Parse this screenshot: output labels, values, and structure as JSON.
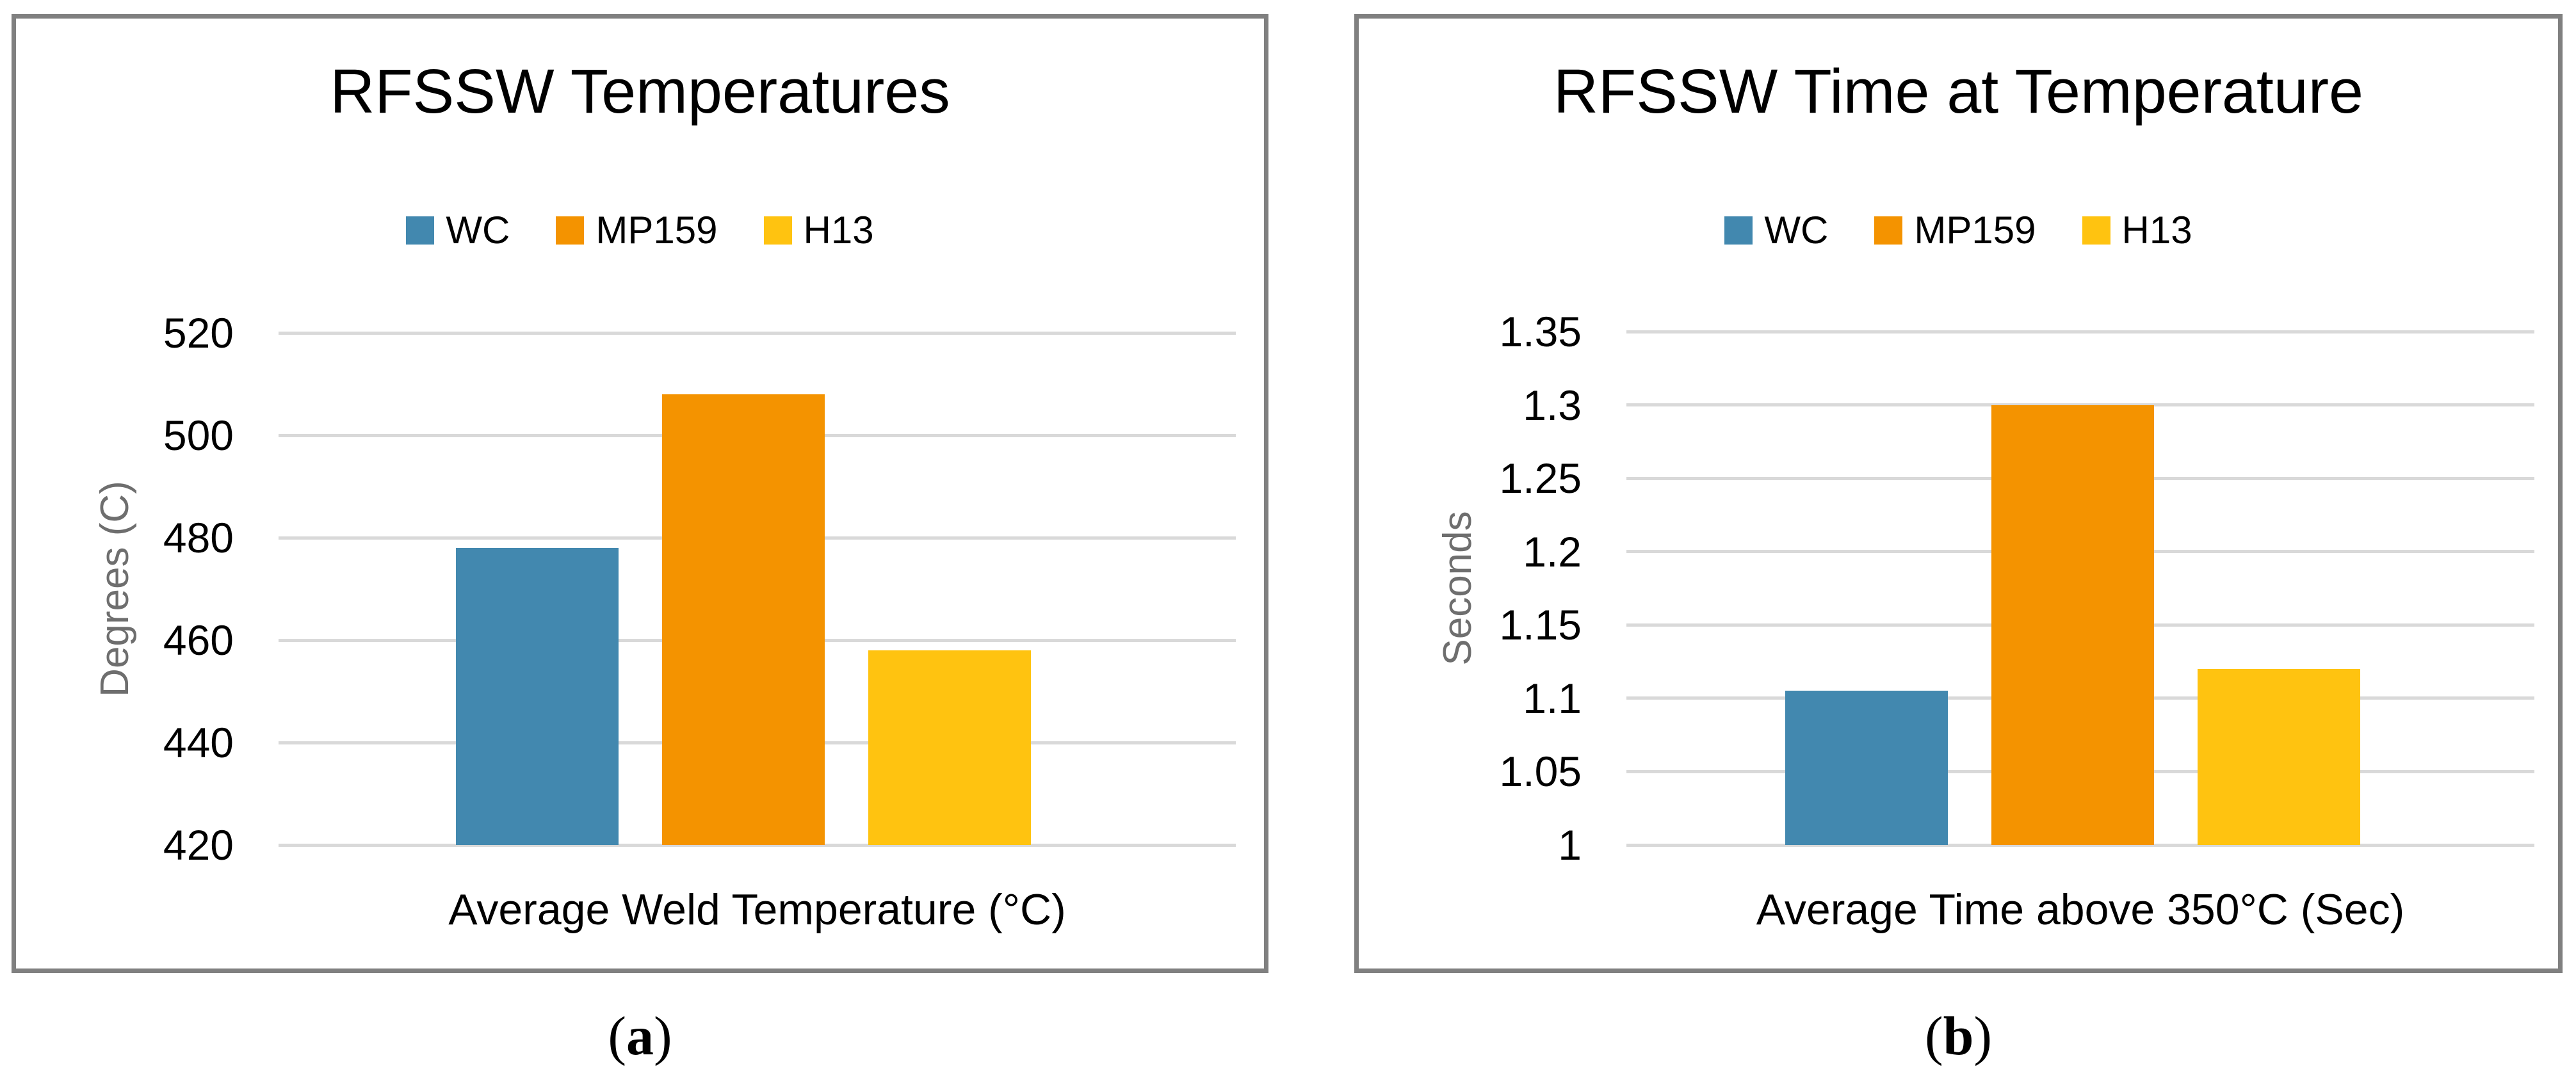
{
  "colors": {
    "bar_blue": "#4288AF",
    "bar_orange": "#F49300",
    "bar_yellow": "#FFC310",
    "gridline": "#D9D9D9",
    "panel_border": "#808080",
    "axis_title_text": "#6E6E6E",
    "text": "#000000"
  },
  "chart_data": [
    {
      "id": "a",
      "type": "bar",
      "title": "RFSSW Temperatures",
      "ylabel": "Degrees (C)",
      "xlabel": "Average Weld Temperature (°C)",
      "categories": [
        "Average Weld Temperature (°C)"
      ],
      "series": [
        {
          "name": "WC",
          "value": 478,
          "color": "#4288AF"
        },
        {
          "name": "MP159",
          "value": 508,
          "color": "#F49300"
        },
        {
          "name": "H13",
          "value": 458,
          "color": "#FFC310"
        }
      ],
      "ylim": [
        420,
        520
      ],
      "ytick_step": 20,
      "yticks": [
        420,
        440,
        460,
        480,
        500,
        520
      ],
      "ytick_labels": [
        "420",
        "440",
        "460",
        "480",
        "500",
        "520"
      ],
      "grid": true,
      "legend_position": "top"
    },
    {
      "id": "b",
      "type": "bar",
      "title": "RFSSW Time at Temperature",
      "ylabel": "Seconds",
      "xlabel": "Average Time above 350°C (Sec)",
      "categories": [
        "Average Time above 350°C (Sec)"
      ],
      "series": [
        {
          "name": "WC",
          "value": 1.105,
          "color": "#4288AF"
        },
        {
          "name": "MP159",
          "value": 1.3,
          "color": "#F49300"
        },
        {
          "name": "H13",
          "value": 1.12,
          "color": "#FFC310"
        }
      ],
      "ylim": [
        1,
        1.35
      ],
      "ytick_step": 0.05,
      "yticks": [
        1,
        1.05,
        1.1,
        1.15,
        1.2,
        1.25,
        1.3,
        1.35
      ],
      "ytick_labels": [
        "1",
        "1.05",
        "1.1",
        "1.15",
        "1.2",
        "1.25",
        "1.3",
        "1.35"
      ],
      "grid": true,
      "legend_position": "top"
    }
  ],
  "captions": {
    "a": {
      "open": "(",
      "letter": "a",
      "close": ")"
    },
    "b": {
      "open": "(",
      "letter": "b",
      "close": ")"
    }
  }
}
